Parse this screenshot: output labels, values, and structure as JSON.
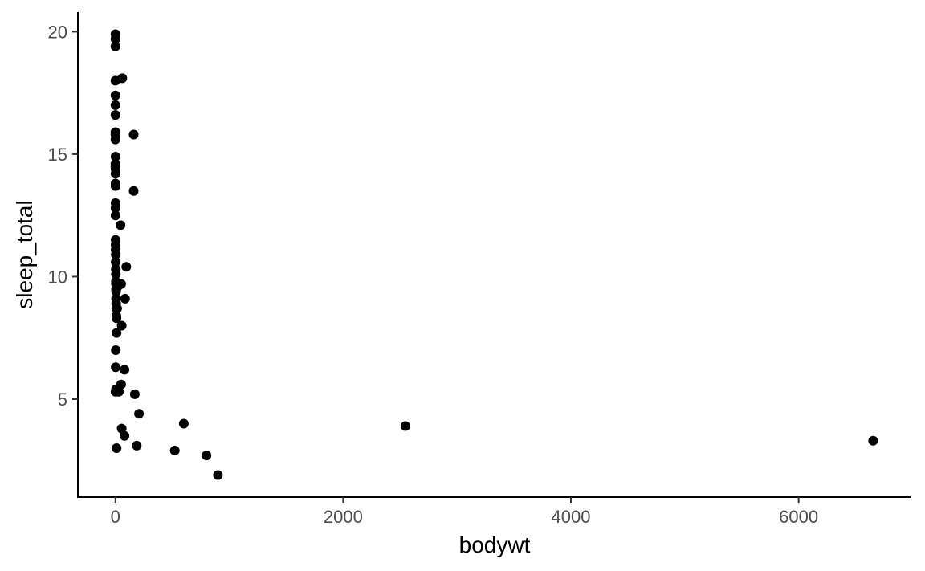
{
  "chart_data": {
    "type": "scatter",
    "xlabel": "bodywt",
    "ylabel": "sleep_total",
    "xlim": [
      -330,
      6990
    ],
    "ylim": [
      1.0,
      20.8
    ],
    "x_ticks": [
      0,
      2000,
      4000,
      6000
    ],
    "x_tick_labels": [
      "0",
      "2000",
      "4000",
      "6000"
    ],
    "y_ticks": [
      5,
      10,
      15,
      20
    ],
    "y_tick_labels": [
      "5",
      "10",
      "15",
      "20"
    ],
    "grid": false,
    "legend": "none",
    "point_color": "#000000",
    "points": [
      {
        "x": 0.005,
        "y": 19.9
      },
      {
        "x": 0.01,
        "y": 19.7
      },
      {
        "x": 0.02,
        "y": 19.4
      },
      {
        "x": 0.02,
        "y": 18.0
      },
      {
        "x": 60,
        "y": 18.1
      },
      {
        "x": 0.1,
        "y": 17.4
      },
      {
        "x": 0.05,
        "y": 17.0
      },
      {
        "x": 0.1,
        "y": 16.6
      },
      {
        "x": 0.2,
        "y": 15.9
      },
      {
        "x": 0.3,
        "y": 15.8
      },
      {
        "x": 0.2,
        "y": 15.6
      },
      {
        "x": 160,
        "y": 15.8
      },
      {
        "x": 0.5,
        "y": 14.9
      },
      {
        "x": 0.3,
        "y": 14.6
      },
      {
        "x": 0.2,
        "y": 14.5
      },
      {
        "x": 0.4,
        "y": 14.4
      },
      {
        "x": 0.5,
        "y": 14.2
      },
      {
        "x": 0.6,
        "y": 13.8
      },
      {
        "x": 0.7,
        "y": 13.7
      },
      {
        "x": 160,
        "y": 13.5
      },
      {
        "x": 0.9,
        "y": 13.0
      },
      {
        "x": 1.0,
        "y": 12.8
      },
      {
        "x": 1.0,
        "y": 12.5
      },
      {
        "x": 45,
        "y": 12.1
      },
      {
        "x": 1.2,
        "y": 11.5
      },
      {
        "x": 1.5,
        "y": 11.3
      },
      {
        "x": 1.6,
        "y": 11.1
      },
      {
        "x": 2.0,
        "y": 10.9
      },
      {
        "x": 2.5,
        "y": 10.6
      },
      {
        "x": 95,
        "y": 10.4
      },
      {
        "x": 3.0,
        "y": 10.3
      },
      {
        "x": 3.5,
        "y": 10.1
      },
      {
        "x": 4.0,
        "y": 9.8
      },
      {
        "x": 4.5,
        "y": 9.7
      },
      {
        "x": 50,
        "y": 9.7
      },
      {
        "x": 20,
        "y": 9.6
      },
      {
        "x": 5.0,
        "y": 9.5
      },
      {
        "x": 5.5,
        "y": 9.4
      },
      {
        "x": 6.0,
        "y": 9.1
      },
      {
        "x": 85,
        "y": 9.1
      },
      {
        "x": 6.5,
        "y": 8.9
      },
      {
        "x": 7.0,
        "y": 8.7
      },
      {
        "x": 15,
        "y": 8.7
      },
      {
        "x": 8.0,
        "y": 8.4
      },
      {
        "x": 9.0,
        "y": 8.3
      },
      {
        "x": 55,
        "y": 8.0
      },
      {
        "x": 10,
        "y": 7.7
      },
      {
        "x": 3.0,
        "y": 7.0
      },
      {
        "x": 2.0,
        "y": 6.3
      },
      {
        "x": 80,
        "y": 6.2
      },
      {
        "x": 50,
        "y": 5.6
      },
      {
        "x": 5.0,
        "y": 5.4
      },
      {
        "x": 1.0,
        "y": 5.3
      },
      {
        "x": 30,
        "y": 5.3
      },
      {
        "x": 170,
        "y": 5.2
      },
      {
        "x": 207,
        "y": 4.4
      },
      {
        "x": 600,
        "y": 4.0
      },
      {
        "x": 2547,
        "y": 3.9
      },
      {
        "x": 55,
        "y": 3.8
      },
      {
        "x": 80,
        "y": 3.5
      },
      {
        "x": 187,
        "y": 3.1
      },
      {
        "x": 10,
        "y": 3.0
      },
      {
        "x": 521,
        "y": 2.9
      },
      {
        "x": 800,
        "y": 2.7
      },
      {
        "x": 900,
        "y": 1.9
      },
      {
        "x": 6654,
        "y": 3.3
      }
    ]
  }
}
